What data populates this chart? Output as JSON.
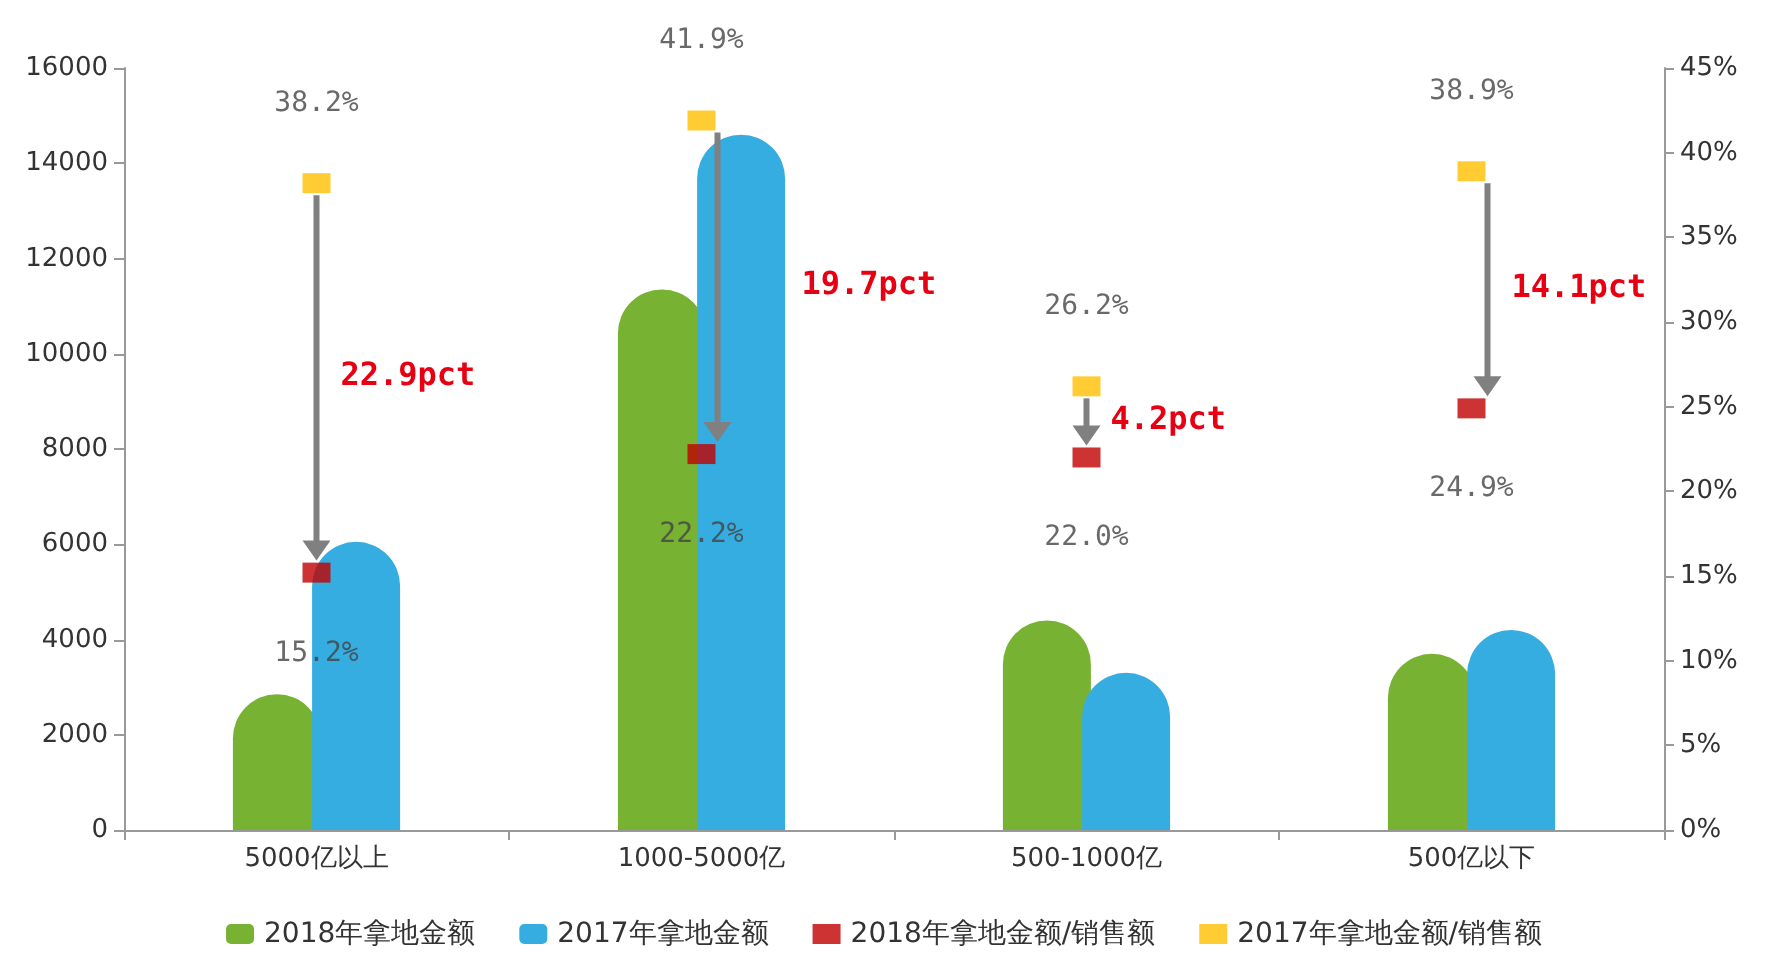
{
  "chart_data": {
    "type": "bar",
    "categories": [
      "5000亿以上",
      "1000-5000亿",
      "500-1000亿",
      "500亿以下"
    ],
    "series": [
      {
        "name": "2018年拿地金额",
        "color": "#77b233",
        "values": [
          2850,
          11350,
          4400,
          3700
        ]
      },
      {
        "name": "2017年拿地金额",
        "color": "#36ade0",
        "values": [
          6050,
          14600,
          3300,
          4200
        ]
      },
      {
        "name": "2018年拿地金额/销售额",
        "type": "scatter",
        "axis": "y2",
        "color": "#c00000",
        "values": [
          15.2,
          22.2,
          22.0,
          24.9
        ],
        "value_labels": [
          "15.2%",
          "22.2%",
          "22.0%",
          "24.9%"
        ]
      },
      {
        "name": "2017年拿地金额/销售额",
        "type": "scatter",
        "axis": "y2",
        "color": "#ffc000",
        "values": [
          38.2,
          41.9,
          26.2,
          38.9
        ],
        "value_labels": [
          "38.2%",
          "41.9%",
          "26.2%",
          "38.9%"
        ]
      }
    ],
    "ylim": [
      0,
      16000
    ],
    "yticks": [
      0,
      2000,
      4000,
      6000,
      8000,
      10000,
      12000,
      14000,
      16000
    ],
    "y2lim": [
      0,
      45
    ],
    "y2ticks": [
      {
        "value": 0,
        "label": "0%"
      },
      {
        "value": 5,
        "label": "5%"
      },
      {
        "value": 10,
        "label": "10%"
      },
      {
        "value": 15,
        "label": "15%"
      },
      {
        "value": 20,
        "label": "20%"
      },
      {
        "value": 25,
        "label": "25%"
      },
      {
        "value": 30,
        "label": "30%"
      },
      {
        "value": 35,
        "label": "35%"
      },
      {
        "value": 40,
        "label": "40%"
      },
      {
        "value": 45,
        "label": "45%"
      }
    ],
    "annotations": [
      "22.9pct",
      "19.7pct",
      "4.2pct",
      "14.1pct"
    ],
    "grid": false,
    "legend": "bottom"
  }
}
